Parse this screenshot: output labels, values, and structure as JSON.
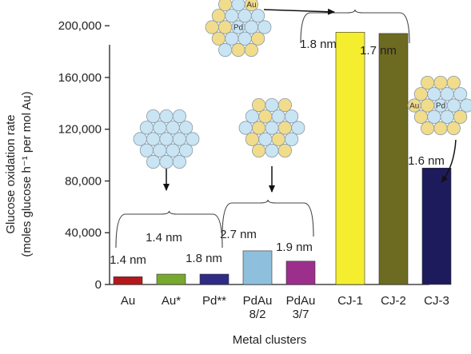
{
  "chart_data": {
    "type": "bar",
    "ylabel_line1": "Glucose oxidation rate",
    "ylabel_line2": "(moles glucose h⁻¹ per mol Au)",
    "xlabel": "Metal clusters",
    "ylim": [
      0,
      210000
    ],
    "yticks": [
      0,
      40000,
      80000,
      120000,
      160000,
      200000
    ],
    "ytick_labels": [
      "0",
      "40,000",
      "80,000",
      "120,000",
      "160,000",
      "200,000"
    ],
    "grid": false,
    "bars": [
      {
        "label_lines": [
          "Au"
        ],
        "value": 6000,
        "color": "#b5181c"
      },
      {
        "label_lines": [
          "Au*"
        ],
        "value": 8000,
        "color": "#77a92e"
      },
      {
        "label_lines": [
          "Pd**"
        ],
        "value": 8000,
        "color": "#2e2c86"
      },
      {
        "label_lines": [
          "PdAu",
          "8/2"
        ],
        "value": 26000,
        "color": "#8ec0dd"
      },
      {
        "label_lines": [
          "PdAu",
          "3/7"
        ],
        "value": 18000,
        "color": "#9b2f8b"
      },
      {
        "label_lines": [
          "CJ-1"
        ],
        "value": 195000,
        "color": "#f4ee2f"
      },
      {
        "label_lines": [
          "CJ-2"
        ],
        "value": 194000,
        "color": "#6d6a22"
      },
      {
        "label_lines": [
          "CJ-3"
        ],
        "value": 90000,
        "color": "#1e1b5c"
      }
    ],
    "size_labels": [
      "1.4 nm",
      "1.4 nm",
      "1.8 nm",
      "2.7 nm",
      "1.9 nm",
      "1.8 nm",
      "1.7 nm",
      "1.6 nm"
    ],
    "atom_labels": {
      "au": "Au",
      "pd": "Pd"
    }
  },
  "colors": {
    "pd_atom": "#c9e4f3",
    "au_atom": "#f1dc8c",
    "atom_stroke": "#8a9aa6"
  }
}
